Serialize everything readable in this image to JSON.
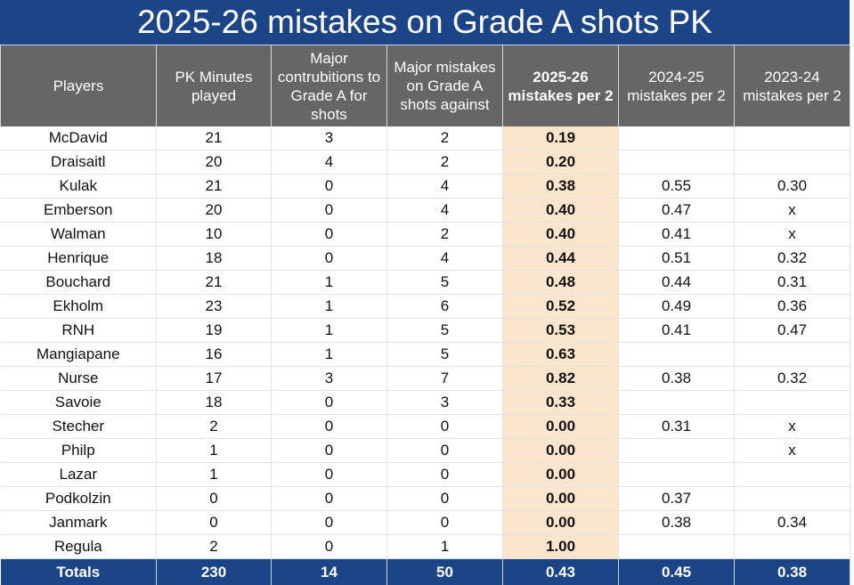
{
  "title": "2025-26 mistakes on Grade A shots PK",
  "colors": {
    "title_bg": "#1c4587",
    "header_bg": "#666666",
    "highlight_col_bg": "#fce5cd",
    "totals_bg": "#1c4587"
  },
  "table": {
    "headers": [
      "Players",
      "PK Minutes played",
      "Major contrubitions to Grade A for shots",
      "Major mistakes on Grade A shots against",
      "2025-26 mistakes per 2",
      "2024-25 mistakes per 2",
      "2023-24 mistakes per 2"
    ],
    "rows": [
      [
        "McDavid",
        "21",
        "3",
        "2",
        "0.19",
        "",
        ""
      ],
      [
        "Draisaitl",
        "20",
        "4",
        "2",
        "0.20",
        "",
        ""
      ],
      [
        "Kulak",
        "21",
        "0",
        "4",
        "0.38",
        "0.55",
        "0.30"
      ],
      [
        "Emberson",
        "20",
        "0",
        "4",
        "0.40",
        "0.47",
        "x"
      ],
      [
        "Walman",
        "10",
        "0",
        "2",
        "0.40",
        "0.41",
        "x"
      ],
      [
        "Henrique",
        "18",
        "0",
        "4",
        "0.44",
        "0.51",
        "0.32"
      ],
      [
        "Bouchard",
        "21",
        "1",
        "5",
        "0.48",
        "0.44",
        "0.31"
      ],
      [
        "Ekholm",
        "23",
        "1",
        "6",
        "0.52",
        "0.49",
        "0.36"
      ],
      [
        "RNH",
        "19",
        "1",
        "5",
        "0.53",
        "0.41",
        "0.47"
      ],
      [
        "Mangiapane",
        "16",
        "1",
        "5",
        "0.63",
        "",
        ""
      ],
      [
        "Nurse",
        "17",
        "3",
        "7",
        "0.82",
        "0.38",
        "0.32"
      ],
      [
        "Savoie",
        "18",
        "0",
        "3",
        "0.33",
        "",
        ""
      ],
      [
        "Stecher",
        "2",
        "0",
        "0",
        "0.00",
        "0.31",
        "x"
      ],
      [
        "Philp",
        "1",
        "0",
        "0",
        "0.00",
        "",
        "x"
      ],
      [
        "Lazar",
        "1",
        "0",
        "0",
        "0.00",
        "",
        ""
      ],
      [
        "Podkolzin",
        "0",
        "0",
        "0",
        "0.00",
        "0.37",
        ""
      ],
      [
        "Janmark",
        "0",
        "0",
        "0",
        "0.00",
        "0.38",
        "0.34"
      ],
      [
        "Regula",
        "2",
        "0",
        "1",
        "1.00",
        "",
        ""
      ]
    ],
    "totals": [
      "Totals",
      "230",
      "14",
      "50",
      "0.43",
      "0.45",
      "0.38"
    ]
  }
}
